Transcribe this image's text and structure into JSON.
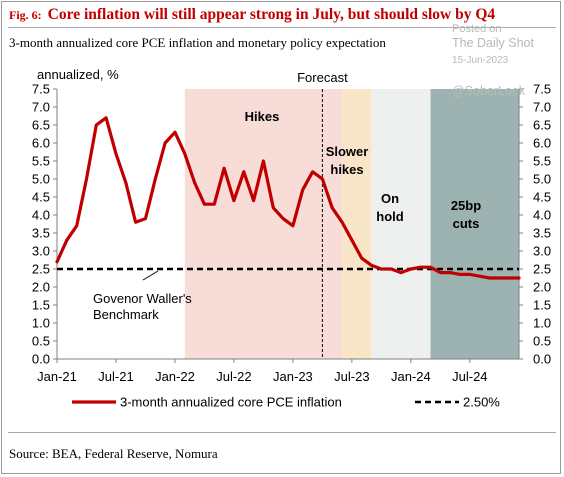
{
  "header": {
    "fig_label": "Fig. 6:",
    "title": "Core inflation will still appear strong in July, but should slow by Q4",
    "subtitle": "3-month annualized core PCE inflation and monetary policy expectation"
  },
  "watermark": {
    "posted_on": "Posted on",
    "site": "The Daily Shot",
    "date": "15-Jun-2023",
    "handle": "@SoberLook"
  },
  "footer": {
    "source": "Source: BEA, Federal Reserve, Nomura"
  },
  "colors": {
    "series_line": "#c00000",
    "benchmark_line": "#000000",
    "hikes_band": "#f7dcd8",
    "slower_hikes_band": "#f9e6c9",
    "on_hold_band": "#eef0f0",
    "cuts_band": "#9cb3b1"
  },
  "chart_data": {
    "type": "line",
    "x_unit": "month",
    "y_label": "annualized, %",
    "ylim": [
      0,
      7.5
    ],
    "y_ticks": [
      "0.0",
      "0.5",
      "1.0",
      "1.5",
      "2.0",
      "2.5",
      "3.0",
      "3.5",
      "4.0",
      "4.5",
      "5.0",
      "5.5",
      "6.0",
      "6.5",
      "7.0",
      "7.5"
    ],
    "x_ticks": [
      "Jan-21",
      "Jul-21",
      "Jan-22",
      "Jul-22",
      "Jan-23",
      "Jul-23",
      "Jan-24",
      "Jul-24"
    ],
    "x_tick_dates": [
      "2021-01",
      "2021-07",
      "2022-01",
      "2022-07",
      "2023-01",
      "2023-07",
      "2024-01",
      "2024-07"
    ],
    "xlim": [
      "2021-01",
      "2024-12"
    ],
    "grid": false,
    "forecast": {
      "label": "Forecast",
      "date": "2023-04"
    },
    "regimes": [
      {
        "label": "Hikes",
        "start": "2022-02",
        "end": "2023-06",
        "color": "#f7dcd8"
      },
      {
        "label": "Slower hikes",
        "start": "2023-06",
        "end": "2023-09",
        "color": "#f9e6c9"
      },
      {
        "label": "On hold",
        "start": "2023-09",
        "end": "2024-03",
        "color": "#eef0f0"
      },
      {
        "label": "25bp cuts",
        "start": "2024-03",
        "end": "2024-12",
        "color": "#9cb3b1"
      }
    ],
    "series": [
      {
        "name": "3-month annualized core PCE inflation",
        "style": "solid",
        "color": "#c00000",
        "x": [
          "2021-01",
          "2021-02",
          "2021-03",
          "2021-04",
          "2021-05",
          "2021-06",
          "2021-07",
          "2021-08",
          "2021-09",
          "2021-10",
          "2021-11",
          "2021-12",
          "2022-01",
          "2022-02",
          "2022-03",
          "2022-04",
          "2022-05",
          "2022-06",
          "2022-07",
          "2022-08",
          "2022-09",
          "2022-10",
          "2022-11",
          "2022-12",
          "2023-01",
          "2023-02",
          "2023-03",
          "2023-04",
          "2023-05",
          "2023-06",
          "2023-07",
          "2023-08",
          "2023-09",
          "2023-10",
          "2023-11",
          "2023-12",
          "2024-01",
          "2024-02",
          "2024-03",
          "2024-04",
          "2024-05",
          "2024-06",
          "2024-07",
          "2024-08",
          "2024-09",
          "2024-10",
          "2024-11",
          "2024-12"
        ],
        "y": [
          2.7,
          3.3,
          3.7,
          5.0,
          6.5,
          6.7,
          5.7,
          4.9,
          3.8,
          3.9,
          5.0,
          6.0,
          6.3,
          5.7,
          4.9,
          4.3,
          4.3,
          5.3,
          4.4,
          5.2,
          4.4,
          5.5,
          4.2,
          3.9,
          3.7,
          4.7,
          5.2,
          5.0,
          4.2,
          3.8,
          3.3,
          2.8,
          2.6,
          2.5,
          2.5,
          2.4,
          2.5,
          2.55,
          2.55,
          2.4,
          2.4,
          2.35,
          2.35,
          2.3,
          2.25,
          2.25,
          2.25,
          2.25
        ]
      },
      {
        "name": "2.50%",
        "style": "dashed",
        "color": "#000000",
        "x": [
          "2021-01",
          "2024-12"
        ],
        "y": [
          2.5,
          2.5
        ]
      }
    ],
    "annotation": {
      "text_lines": [
        "Govenor Waller's",
        "Benchmark"
      ]
    },
    "legend": {
      "position": "bottom"
    }
  }
}
